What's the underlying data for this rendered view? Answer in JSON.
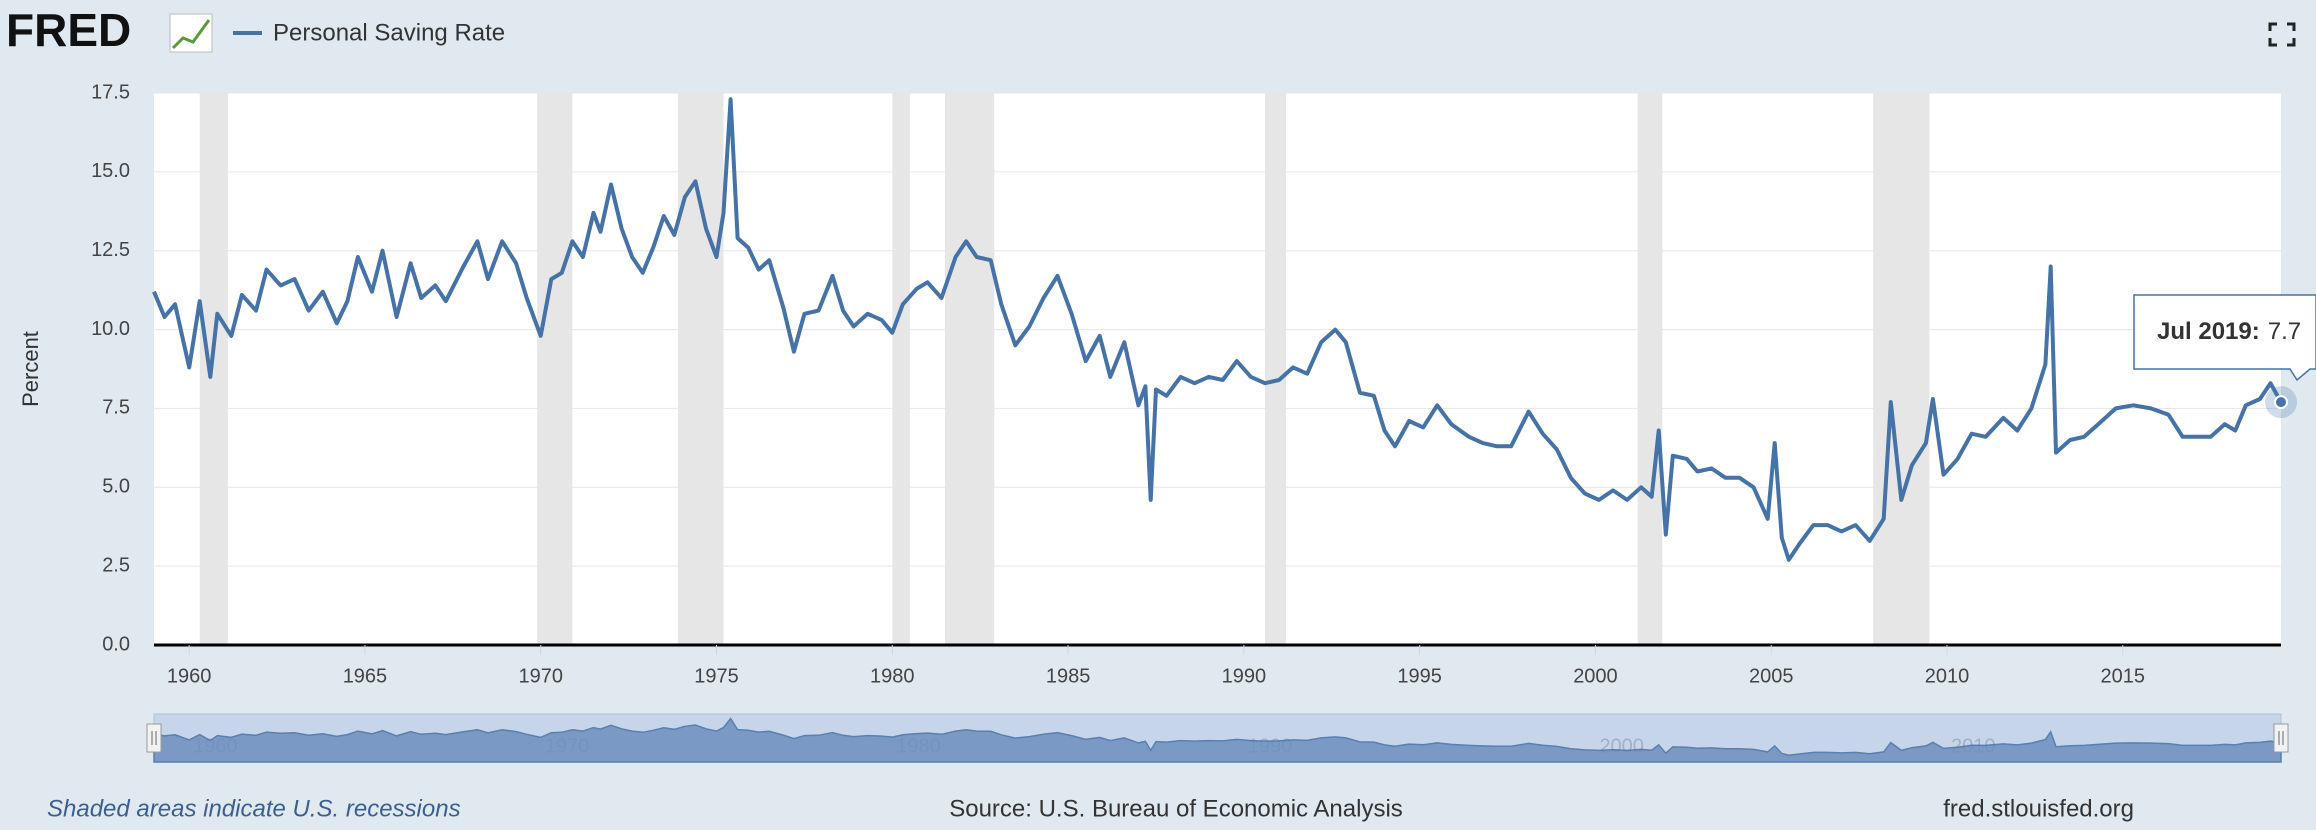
{
  "header": {
    "logo": "FRED"
  },
  "chart_data": {
    "type": "line",
    "y_label": "Percent",
    "x": [
      1959.0,
      1959.3,
      1959.6,
      1960.0,
      1960.3,
      1960.6,
      1960.8,
      1961.2,
      1961.5,
      1961.9,
      1962.2,
      1962.6,
      1963.0,
      1963.4,
      1963.8,
      1964.2,
      1964.5,
      1964.8,
      1965.2,
      1965.5,
      1965.9,
      1966.3,
      1966.6,
      1967.0,
      1967.3,
      1967.8,
      1968.2,
      1968.5,
      1968.9,
      1969.3,
      1969.6,
      1970.0,
      1970.3,
      1970.6,
      1970.9,
      1971.2,
      1971.5,
      1971.7,
      1972.0,
      1972.3,
      1972.6,
      1972.9,
      1973.2,
      1973.5,
      1973.8,
      1974.1,
      1974.4,
      1974.7,
      1975.0,
      1975.2,
      1975.4,
      1975.6,
      1975.9,
      1976.2,
      1976.5,
      1976.9,
      1977.2,
      1977.5,
      1977.9,
      1978.3,
      1978.6,
      1978.9,
      1979.3,
      1979.7,
      1980.0,
      1980.3,
      1980.7,
      1981.0,
      1981.4,
      1981.8,
      1982.1,
      1982.4,
      1982.8,
      1983.1,
      1983.5,
      1983.9,
      1984.3,
      1984.7,
      1985.1,
      1985.5,
      1985.9,
      1986.2,
      1986.6,
      1987.0,
      1987.2,
      1987.35,
      1987.5,
      1987.8,
      1988.2,
      1988.6,
      1989.0,
      1989.4,
      1989.8,
      1990.2,
      1990.6,
      1991.0,
      1991.4,
      1991.8,
      1992.2,
      1992.6,
      1992.9,
      1993.3,
      1993.7,
      1994.0,
      1994.3,
      1994.7,
      1995.1,
      1995.5,
      1995.9,
      1996.4,
      1996.8,
      1997.2,
      1997.6,
      1998.1,
      1998.5,
      1998.9,
      1999.3,
      1999.7,
      2000.1,
      2000.5,
      2000.9,
      2001.3,
      2001.6,
      2001.8,
      2002.0,
      2002.2,
      2002.6,
      2002.9,
      2003.3,
      2003.7,
      2004.1,
      2004.5,
      2004.9,
      2005.1,
      2005.3,
      2005.5,
      2005.8,
      2006.2,
      2006.6,
      2007.0,
      2007.4,
      2007.8,
      2008.2,
      2008.4,
      2008.7,
      2009.0,
      2009.4,
      2009.6,
      2009.9,
      2010.3,
      2010.7,
      2011.1,
      2011.6,
      2012.0,
      2012.4,
      2012.8,
      2012.95,
      2013.1,
      2013.5,
      2013.9,
      2014.3,
      2014.8,
      2015.3,
      2015.8,
      2016.3,
      2016.7,
      2017.1,
      2017.5,
      2017.9,
      2018.2,
      2018.5,
      2018.9,
      2019.2,
      2019.5
    ],
    "series": [
      {
        "name": "Personal Saving Rate",
        "color": "#4572a7",
        "values": [
          11.2,
          10.4,
          10.8,
          8.8,
          10.9,
          8.5,
          10.5,
          9.8,
          11.1,
          10.6,
          11.9,
          11.4,
          11.6,
          10.6,
          11.2,
          10.2,
          10.9,
          12.3,
          11.2,
          12.5,
          10.4,
          12.1,
          11.0,
          11.4,
          10.9,
          12.0,
          12.8,
          11.6,
          12.8,
          12.1,
          11.0,
          9.8,
          11.6,
          11.8,
          12.8,
          12.3,
          13.7,
          13.1,
          14.6,
          13.2,
          12.3,
          11.8,
          12.6,
          13.6,
          13.0,
          14.2,
          14.7,
          13.2,
          12.3,
          13.7,
          17.3,
          12.9,
          12.6,
          11.9,
          12.2,
          10.7,
          9.3,
          10.5,
          10.6,
          11.7,
          10.6,
          10.1,
          10.5,
          10.3,
          9.9,
          10.8,
          11.3,
          11.5,
          11.0,
          12.3,
          12.8,
          12.3,
          12.2,
          10.8,
          9.5,
          10.1,
          11.0,
          11.7,
          10.5,
          9.0,
          9.8,
          8.5,
          9.6,
          7.6,
          8.2,
          4.6,
          8.1,
          7.9,
          8.5,
          8.3,
          8.5,
          8.4,
          9.0,
          8.5,
          8.3,
          8.4,
          8.8,
          8.6,
          9.6,
          10.0,
          9.6,
          8.0,
          7.9,
          6.8,
          6.3,
          7.1,
          6.9,
          7.6,
          7.0,
          6.6,
          6.4,
          6.3,
          6.3,
          7.4,
          6.7,
          6.2,
          5.3,
          4.8,
          4.6,
          4.9,
          4.6,
          5.0,
          4.7,
          6.8,
          3.5,
          6.0,
          5.9,
          5.5,
          5.6,
          5.3,
          5.3,
          5.0,
          4.0,
          6.4,
          3.4,
          2.7,
          3.2,
          3.8,
          3.8,
          3.6,
          3.8,
          3.3,
          4.0,
          7.7,
          4.6,
          5.7,
          6.4,
          7.8,
          5.4,
          5.9,
          6.7,
          6.6,
          7.2,
          6.8,
          7.5,
          8.9,
          12.0,
          6.1,
          6.5,
          6.6,
          7.0,
          7.5,
          7.6,
          7.5,
          7.3,
          6.6,
          6.6,
          6.6,
          7.0,
          6.8,
          7.6,
          7.8,
          8.3,
          7.7
        ]
      }
    ],
    "recessions": [
      [
        1960.3,
        1961.1
      ],
      [
        1969.9,
        1970.9
      ],
      [
        1973.9,
        1975.2
      ],
      [
        1980.0,
        1980.5
      ],
      [
        1981.5,
        1982.9
      ],
      [
        1990.6,
        1991.2
      ],
      [
        2001.2,
        2001.9
      ],
      [
        2007.9,
        2009.5
      ]
    ],
    "xlim": [
      1959,
      2019.5
    ],
    "xticks": [
      1960,
      1965,
      1970,
      1975,
      1980,
      1985,
      1990,
      1995,
      2000,
      2005,
      2010,
      2015
    ],
    "ylim": [
      0,
      17.5
    ],
    "yticks": [
      {
        "value": 0,
        "label": "0.0"
      },
      2.5,
      {
        "value": 5,
        "label": "5.0"
      },
      7.5,
      {
        "value": 10,
        "label": "10.0"
      },
      12.5,
      {
        "value": 15,
        "label": "15.0"
      },
      17.5
    ],
    "grid": true,
    "tooltip": {
      "label": "Jul 2019:"
    },
    "navigator_ticks": [
      1960,
      1970,
      1980,
      1990,
      2000,
      2010
    ]
  },
  "footer": {
    "note": "Shaded areas indicate U.S. recessions",
    "source": "Source: U.S. Bureau of Economic Analysis",
    "site": "fred.stlouisfed.org"
  }
}
